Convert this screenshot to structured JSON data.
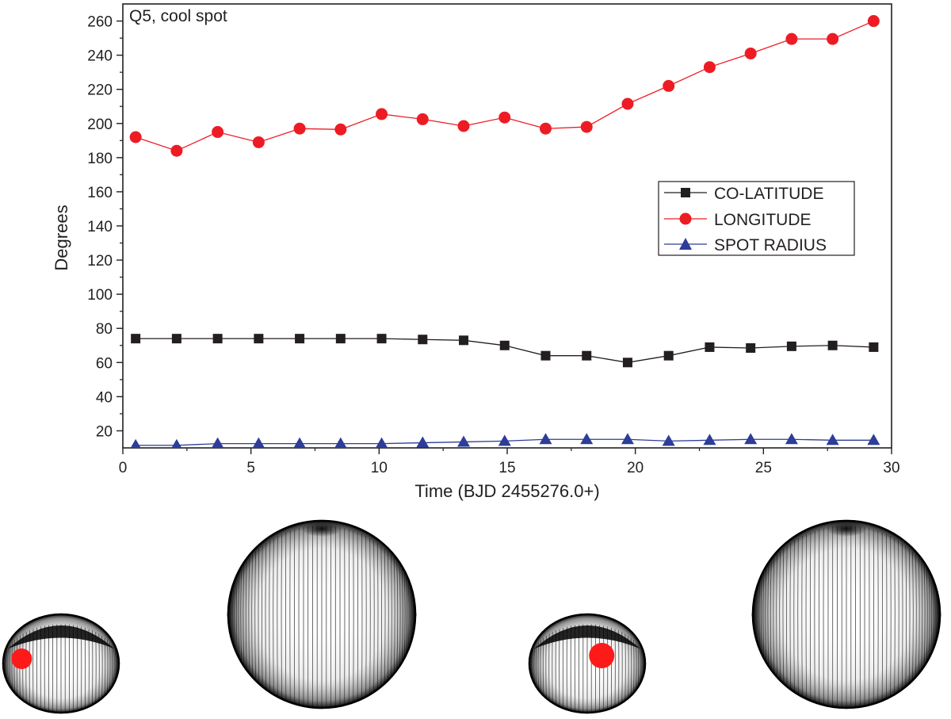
{
  "chart_data": {
    "type": "line",
    "title": "Q5, cool spot",
    "xlabel": "Time (BJD 2455276.0+)",
    "ylabel": "Degrees",
    "xlim": [
      0,
      30
    ],
    "ylim": [
      10,
      270
    ],
    "xticks": [
      0,
      5,
      10,
      15,
      20,
      25,
      30
    ],
    "yticks": [
      20,
      40,
      60,
      80,
      100,
      120,
      140,
      160,
      180,
      200,
      220,
      240,
      260
    ],
    "grid": false,
    "legend_position": "right",
    "x": [
      0.5,
      2.1,
      3.7,
      5.3,
      6.9,
      8.5,
      10.1,
      11.7,
      13.3,
      14.9,
      16.5,
      18.1,
      19.7,
      21.3,
      22.9,
      24.5,
      26.1,
      27.7,
      29.3
    ],
    "series": [
      {
        "name": "CO-LATITUDE",
        "marker": "square",
        "color": "#231f20",
        "values": [
          74,
          74,
          74,
          74,
          74,
          74,
          74,
          73.5,
          73,
          70,
          64,
          64,
          60,
          64,
          69,
          68.5,
          69.5,
          70,
          69
        ]
      },
      {
        "name": "LONGITUDE",
        "marker": "circle",
        "color": "#ed1c24",
        "values": [
          192,
          184,
          195,
          189,
          197,
          196.5,
          205.5,
          202.5,
          198.5,
          203.5,
          197,
          198,
          211.5,
          222,
          233,
          241,
          249.5,
          249.5,
          260
        ]
      },
      {
        "name": "SPOT RADIUS",
        "marker": "triangle",
        "color": "#2e3d98",
        "values": [
          11.5,
          11.5,
          12.5,
          12.5,
          12.5,
          12.5,
          12.5,
          13,
          13.5,
          14,
          15,
          15,
          15,
          14,
          14.5,
          15,
          15,
          14.5,
          14.5
        ]
      }
    ]
  },
  "star_images": [
    {
      "view": "oblique",
      "spot": "left",
      "spot_color": "#ff1a1a"
    },
    {
      "view": "polar",
      "spot": "none",
      "spot_color": ""
    },
    {
      "view": "oblique",
      "spot": "center",
      "spot_color": "#ff1a1a"
    },
    {
      "view": "polar",
      "spot": "none",
      "spot_color": ""
    }
  ]
}
